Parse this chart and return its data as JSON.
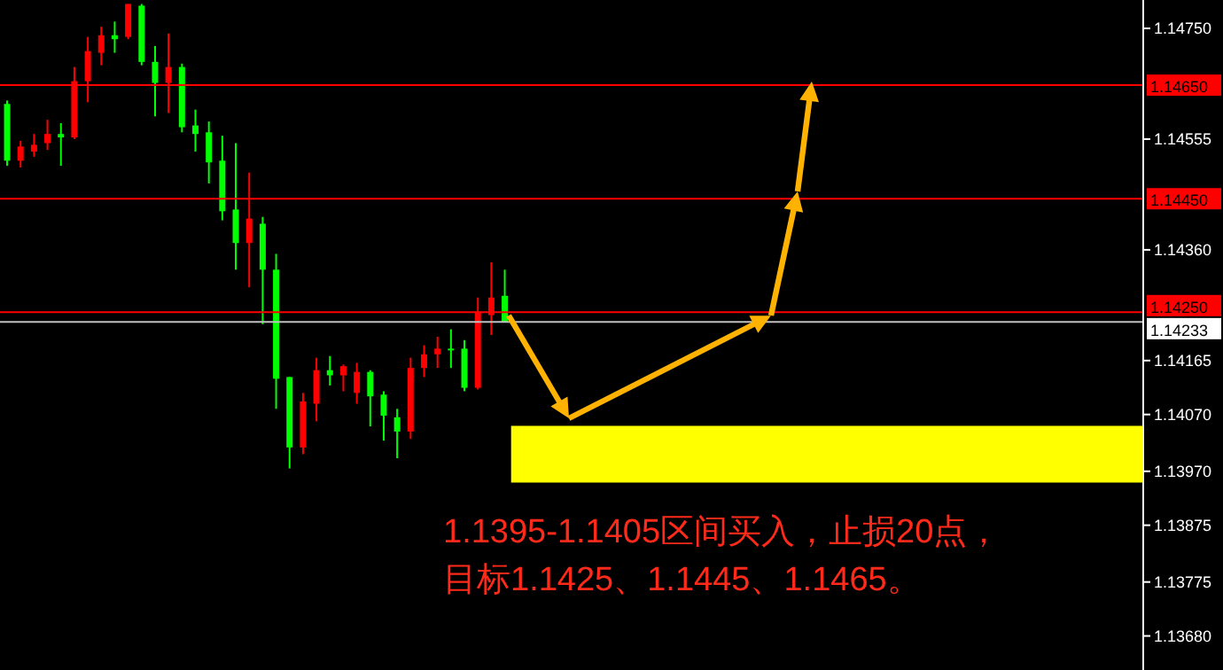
{
  "chart_data": {
    "type": "candlestick",
    "categories": [
      null,
      null,
      null,
      null,
      null,
      null,
      null,
      null,
      null,
      null,
      null,
      null,
      null,
      null,
      null,
      null,
      null,
      null,
      null,
      null,
      null,
      null,
      null,
      null,
      null,
      null,
      null,
      null,
      null,
      null,
      null,
      null,
      null,
      null,
      null,
      null,
      null,
      null,
      null,
      null,
      null,
      null,
      null,
      null,
      null,
      null,
      null,
      null,
      null,
      null,
      null,
      null,
      null,
      null,
      null,
      null,
      null,
      null,
      null,
      null,
      null,
      null,
      null,
      null,
      null,
      null,
      null,
      null,
      null,
      null,
      null,
      null,
      null,
      null,
      null,
      null,
      null,
      null,
      null,
      null,
      null,
      null,
      null,
      null,
      null
    ],
    "ohlc": [
      [
        1.14617,
        1.14623,
        1.14508,
        1.14517
      ],
      [
        1.14517,
        1.14552,
        1.14505,
        1.14542
      ],
      [
        1.14533,
        1.14564,
        1.14524,
        1.14545
      ],
      [
        1.14548,
        1.14589,
        1.14536,
        1.14564
      ],
      [
        1.14564,
        1.14583,
        1.14508,
        1.14558
      ],
      [
        1.14558,
        1.14682,
        1.14555,
        1.14657
      ],
      [
        1.14657,
        1.14735,
        1.1462,
        1.1471
      ],
      [
        1.14707,
        1.14753,
        1.14685,
        1.14738
      ],
      [
        1.14738,
        1.14762,
        1.14707,
        1.14731
      ],
      [
        1.14735,
        1.14793,
        1.14731,
        1.14793
      ],
      [
        1.1479,
        1.14793,
        1.14685,
        1.14691
      ],
      [
        1.14691,
        1.14719,
        1.14595,
        1.14654
      ],
      [
        1.14654,
        1.14741,
        1.14601,
        1.14682
      ],
      [
        1.14682,
        1.14688,
        1.14567,
        1.14576
      ],
      [
        1.14579,
        1.14607,
        1.14533,
        1.14564
      ],
      [
        1.14567,
        1.14586,
        1.14477,
        1.14514
      ],
      [
        1.14517,
        1.14561,
        1.14412,
        1.14428
      ],
      [
        1.14431,
        1.14548,
        1.14325,
        1.14372
      ],
      [
        1.14372,
        1.14496,
        1.14294,
        1.14415
      ],
      [
        1.14406,
        1.14418,
        1.14229,
        1.14325
      ],
      [
        1.14325,
        1.14353,
        1.1408,
        1.14133
      ],
      [
        1.14136,
        1.14136,
        1.13975,
        1.14012
      ],
      [
        1.14012,
        1.14108,
        1.14,
        1.14093
      ],
      [
        1.14089,
        1.1417,
        1.14058,
        1.14148
      ],
      [
        1.14148,
        1.14173,
        1.14121,
        1.14139
      ],
      [
        1.14139,
        1.14158,
        1.14111,
        1.14155
      ],
      [
        1.14108,
        1.14161,
        1.14089,
        1.14145
      ],
      [
        1.14145,
        1.14148,
        1.14049,
        1.14102
      ],
      [
        1.14105,
        1.14111,
        1.14024,
        1.14068
      ],
      [
        1.14065,
        1.1408,
        1.13993,
        1.1404
      ],
      [
        1.1404,
        1.1417,
        1.14027,
        1.14152
      ],
      [
        1.14152,
        1.14192,
        1.14136,
        1.14176
      ],
      [
        1.14176,
        1.14207,
        1.14152,
        1.14186
      ],
      [
        1.14186,
        1.1422,
        1.14152,
        1.14183
      ],
      [
        1.14186,
        1.14201,
        1.14111,
        1.14117
      ],
      [
        1.14117,
        1.14276,
        1.14114,
        1.14251
      ],
      [
        1.14245,
        1.14338,
        1.1421,
        1.14276
      ],
      [
        1.14279,
        1.14325,
        1.14233,
        1.14233
      ],
      null,
      null,
      null,
      null,
      null,
      null,
      null,
      null,
      null,
      null,
      null,
      null,
      null,
      null,
      null,
      null,
      null,
      null,
      null,
      null,
      null,
      null,
      null,
      null,
      null,
      null,
      null,
      null,
      null,
      null,
      null,
      null,
      null,
      null,
      null,
      null,
      null,
      null,
      null,
      null,
      null,
      null,
      null,
      null,
      null,
      null,
      null
    ],
    "colors": [
      "#00ff00",
      "#ff0000",
      "#ff0000",
      "#ff0000",
      "#00ff00",
      "#ff0000",
      "#ff0000",
      "#ff0000",
      "#00ff00",
      "#ff0000",
      "#00ff00",
      "#00ff00",
      "#ff0000",
      "#00ff00",
      "#00ff00",
      "#00ff00",
      "#00ff00",
      "#00ff00",
      "#ff0000",
      "#00ff00",
      "#00ff00",
      "#00ff00",
      "#ff0000",
      "#ff0000",
      "#00ff00",
      "#ff0000",
      "#ff0000",
      "#00ff00",
      "#00ff00",
      "#00ff00",
      "#ff0000",
      "#ff0000",
      "#ff0000",
      "#00ff00",
      "#00ff00",
      "#ff0000",
      "#ff0000",
      "#00ff00",
      null,
      null,
      null,
      null,
      null,
      null,
      null,
      null,
      null,
      null,
      null,
      null,
      null,
      null,
      null,
      null,
      null,
      null,
      null,
      null,
      null,
      null,
      null,
      null,
      null,
      null,
      null,
      null,
      null,
      null,
      null,
      null,
      null,
      null,
      null,
      null,
      null,
      null,
      null,
      null,
      null,
      null,
      null,
      null,
      null,
      null,
      null
    ],
    "ylim": [
      1.1362,
      1.148
    ],
    "yticks": [
      {
        "value": 1.1475,
        "label": "1.14750"
      },
      {
        "value": 1.14555,
        "label": "1.14555"
      },
      {
        "value": 1.1436,
        "label": "1.14360"
      },
      {
        "value": 1.14165,
        "label": "1.14165"
      },
      {
        "value": 1.1407,
        "label": "1.14070"
      },
      {
        "value": 1.1397,
        "label": "1.13970"
      },
      {
        "value": 1.13875,
        "label": "1.13875"
      },
      {
        "value": 1.13775,
        "label": "1.13775"
      },
      {
        "value": 1.1368,
        "label": "1.13680"
      }
    ],
    "ref_lines": [
      {
        "axis": "y",
        "value": 1.1465,
        "label": "1.14650",
        "color": "#ff0000"
      },
      {
        "axis": "y",
        "value": 1.1445,
        "label": "1.14450",
        "color": "#ff0000"
      },
      {
        "axis": "y",
        "value": 1.1425,
        "label": "1.14250",
        "color": "#ff0000"
      },
      {
        "axis": "y",
        "value": 1.14233,
        "label": "1.14233",
        "color": "#c0c0c0"
      }
    ],
    "bands": [
      {
        "axis": "y",
        "from": 1.1395,
        "to": 1.1405,
        "color": "#ffff00"
      }
    ],
    "annotations": [
      "1.1395-1.1405区间买入，止损20点，",
      "目标1.1425、1.1445、1.1465。"
    ],
    "tick_labels": "y"
  }
}
